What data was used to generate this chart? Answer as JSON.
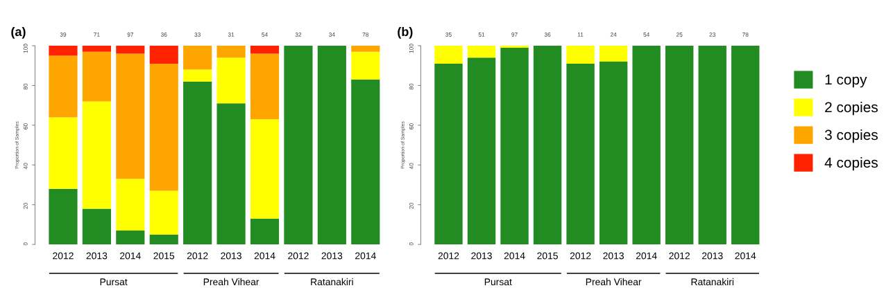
{
  "chart_data": [
    {
      "type": "bar",
      "title": "(a)",
      "ylabel": "Proportion of Samples",
      "stacked": true,
      "legend": "right",
      "categories": [
        "2012",
        "2013",
        "2014",
        "2015",
        "2012",
        "2013",
        "2014",
        "2012",
        "2013",
        "2014"
      ],
      "ylim": [
        0,
        100
      ],
      "yticks": [
        0,
        20,
        40,
        60,
        80,
        100
      ],
      "series": [
        {
          "name": "1 copy",
          "color": "#228b22",
          "values": [
            28,
            18,
            7,
            5,
            82,
            71,
            13,
            100,
            100,
            83
          ]
        },
        {
          "name": "2 copies",
          "color": "#ffff00",
          "values": [
            36,
            54,
            26,
            22,
            6,
            23,
            50,
            0,
            0,
            14
          ]
        },
        {
          "name": "3 copies",
          "color": "#ffa500",
          "values": [
            31,
            25,
            63,
            64,
            12,
            6,
            33,
            0,
            0,
            3
          ]
        },
        {
          "name": "4 copies",
          "color": "#ff2200",
          "values": [
            5,
            3,
            4,
            9,
            0,
            0,
            4,
            0,
            0,
            0
          ]
        }
      ],
      "annotations": [
        "39",
        "71",
        "97",
        "36",
        "33",
        "31",
        "54",
        "32",
        "34",
        "78",
        "Pursat",
        "Preah Vihear",
        "Ratanakiri"
      ]
    },
    {
      "type": "bar",
      "title": "(b)",
      "ylabel": "Proportion of Samples",
      "stacked": true,
      "categories": [
        "2012",
        "2013",
        "2014",
        "2015",
        "2012",
        "2013",
        "2014",
        "2012",
        "2013",
        "2014"
      ],
      "ylim": [
        0,
        100
      ],
      "yticks": [
        0,
        20,
        40,
        60,
        80,
        100
      ],
      "series": [
        {
          "color": "#228b22",
          "values": [
            91,
            94,
            99,
            100,
            91,
            92,
            100,
            100,
            100,
            100
          ]
        },
        {
          "color": "#ffff00",
          "values": [
            9,
            6,
            1,
            0,
            9,
            8,
            0,
            0,
            0,
            0
          ]
        }
      ],
      "annotations": [
        "35",
        "51",
        "97",
        "36",
        "11",
        "24",
        "54",
        "25",
        "23",
        "78",
        "Pursat",
        "Preah Vihear",
        "Ratanakiri"
      ]
    }
  ]
}
